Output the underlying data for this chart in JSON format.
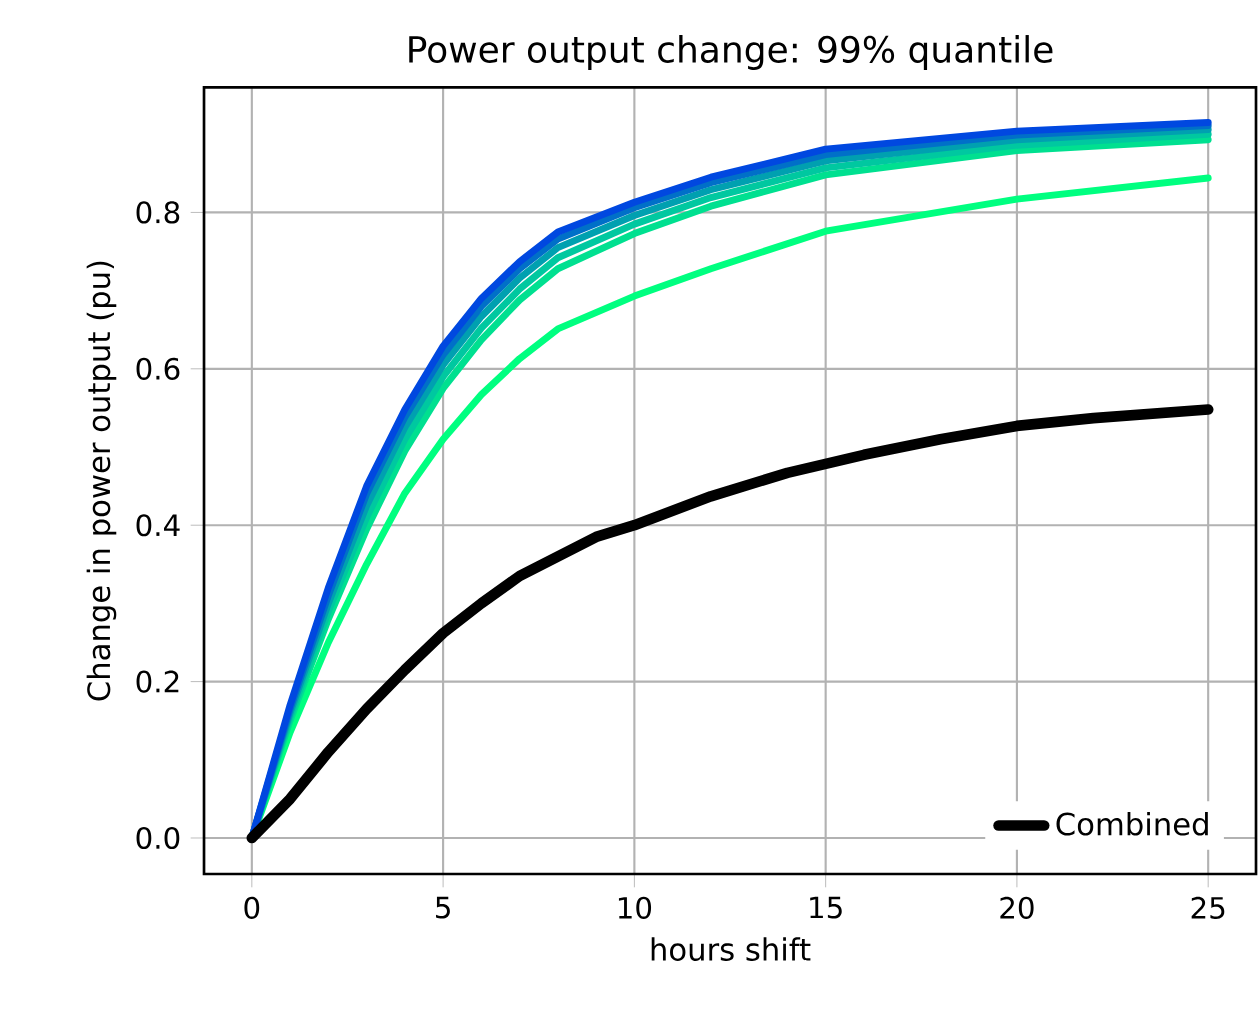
{
  "chart_data": {
    "type": "line",
    "title": "Power output change: 99% quantile",
    "xlabel": "hours shift",
    "ylabel": "Change in power output (pu)",
    "xlim": [
      -1.25,
      26.25
    ],
    "ylim": [
      -0.046,
      0.96
    ],
    "xticks": [
      0,
      5,
      10,
      15,
      20,
      25
    ],
    "yticks": [
      {
        "value": 0,
        "label": "0.0"
      },
      {
        "value": 0.2,
        "label": "0.2"
      },
      {
        "value": 0.4,
        "label": "0.4"
      },
      {
        "value": 0.6,
        "label": "0.6"
      },
      {
        "value": 0.8,
        "label": "0.8"
      }
    ],
    "grid": true,
    "legend": "bottom right",
    "marker": "none",
    "line_style": "solid",
    "series": [
      {
        "color": "#00ff80",
        "x": [
          0,
          1,
          2,
          3,
          4,
          5,
          6,
          7,
          8,
          10,
          12,
          15,
          20,
          25
        ],
        "values": [
          0,
          0.135,
          0.25,
          0.35,
          0.441,
          0.51,
          0.567,
          0.613,
          0.651,
          0.693,
          0.728,
          0.776,
          0.817,
          0.844
        ]
      },
      {
        "color": "#00e090",
        "x": [
          0,
          1,
          2,
          3,
          4,
          5,
          6,
          7,
          8,
          10,
          12,
          15,
          20,
          25
        ],
        "values": [
          0,
          0.15,
          0.28,
          0.395,
          0.495,
          0.575,
          0.637,
          0.688,
          0.728,
          0.773,
          0.808,
          0.848,
          0.879,
          0.893
        ]
      },
      {
        "color": "#00c8a0",
        "x": [
          0,
          1,
          2,
          3,
          4,
          5,
          6,
          7,
          8,
          10,
          12,
          15,
          20,
          25
        ],
        "values": [
          0,
          0.155,
          0.29,
          0.41,
          0.51,
          0.59,
          0.652,
          0.702,
          0.742,
          0.785,
          0.819,
          0.857,
          0.886,
          0.9
        ]
      },
      {
        "color": "#00a0b0",
        "x": [
          0,
          1,
          2,
          3,
          4,
          5,
          6,
          7,
          8,
          10,
          12,
          15,
          20,
          25
        ],
        "values": [
          0,
          0.16,
          0.3,
          0.425,
          0.525,
          0.605,
          0.667,
          0.716,
          0.755,
          0.796,
          0.829,
          0.866,
          0.893,
          0.906
        ]
      },
      {
        "color": "#0070c8",
        "x": [
          0,
          1,
          2,
          3,
          4,
          5,
          6,
          7,
          8,
          10,
          12,
          15,
          20,
          25
        ],
        "values": [
          0,
          0.165,
          0.31,
          0.44,
          0.538,
          0.618,
          0.68,
          0.728,
          0.766,
          0.806,
          0.838,
          0.874,
          0.899,
          0.911
        ]
      },
      {
        "color": "#0048e0",
        "x": [
          0,
          1,
          2,
          3,
          4,
          5,
          6,
          7,
          8,
          10,
          12,
          15,
          20,
          25
        ],
        "values": [
          0,
          0.17,
          0.32,
          0.45,
          0.548,
          0.629,
          0.69,
          0.737,
          0.775,
          0.813,
          0.845,
          0.881,
          0.904,
          0.915
        ]
      },
      {
        "name": "Combined",
        "color": "#000000",
        "x": [
          0,
          1,
          2,
          3,
          4,
          5,
          6,
          7,
          8,
          9,
          10,
          12,
          14,
          16,
          18,
          20,
          22,
          25
        ],
        "values": [
          0,
          0.05,
          0.11,
          0.165,
          0.215,
          0.262,
          0.3,
          0.335,
          0.36,
          0.385,
          0.4,
          0.437,
          0.467,
          0.49,
          0.51,
          0.527,
          0.537,
          0.548
        ]
      }
    ]
  }
}
